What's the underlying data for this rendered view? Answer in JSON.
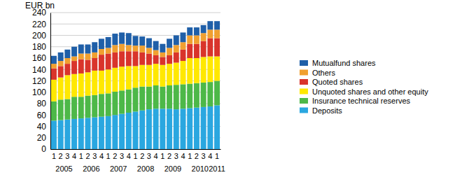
{
  "chart_data": {
    "type": "bar",
    "stacked": true,
    "grid": true,
    "legend": "right",
    "y_label": "EUR bn",
    "categories": [
      "1",
      "2",
      "3",
      "4",
      "1",
      "2",
      "3",
      "4",
      "1",
      "2",
      "3",
      "4",
      "1",
      "2",
      "3",
      "4",
      "1",
      "2",
      "3",
      "4",
      "1",
      "2",
      "3",
      "4",
      "1"
    ],
    "x_groups": [
      "2005",
      "2006",
      "2007",
      "2008",
      "2009",
      "2010",
      "2011"
    ],
    "ylim": [
      0,
      240
    ],
    "yticks": [
      0,
      20,
      40,
      60,
      80,
      100,
      120,
      140,
      160,
      180,
      200,
      220,
      240
    ],
    "series": [
      {
        "name": "Deposits",
        "color": "#2aa7e0",
        "values": [
          50,
          51,
          52,
          53,
          54,
          55,
          56,
          57,
          58,
          60,
          62,
          64,
          66,
          68,
          70,
          71,
          71,
          71,
          70,
          71,
          72,
          73,
          74,
          75,
          77
        ]
      },
      {
        "name": "Insurance technical reserves",
        "color": "#4db848",
        "values": [
          34,
          36,
          36,
          39,
          38,
          39,
          39,
          40,
          40,
          41,
          41,
          41,
          42,
          42,
          40,
          41,
          39,
          41,
          43,
          43,
          43,
          43,
          43,
          43,
          43
        ]
      },
      {
        "name": "Unquoted shares and other equity",
        "color": "#ffe800",
        "values": [
          38,
          39,
          42,
          40,
          41,
          41,
          43,
          41,
          42,
          42,
          42,
          41,
          38,
          38,
          38,
          38,
          38,
          38,
          39,
          41,
          45,
          44,
          45,
          45,
          43
        ]
      },
      {
        "name": "Quoted shares",
        "color": "#d9342b",
        "values": [
          20,
          20,
          20,
          23,
          25,
          22,
          22,
          28,
          28,
          27,
          27,
          26,
          26,
          22,
          20,
          15,
          14,
          15,
          18,
          20,
          25,
          25,
          28,
          32,
          32
        ]
      },
      {
        "name": "Others",
        "color": "#f0a030",
        "values": [
          8,
          9,
          10,
          8,
          10,
          11,
          10,
          10,
          10,
          13,
          13,
          11,
          10,
          12,
          10,
          9,
          8,
          13,
          13,
          13,
          15,
          15,
          14,
          15,
          15
        ]
      },
      {
        "name": "Mutualfund shares",
        "color": "#1f5fa8",
        "values": [
          14,
          15,
          15,
          17,
          16,
          16,
          18,
          18,
          19,
          20,
          20,
          21,
          17,
          16,
          17,
          16,
          15,
          16,
          17,
          17,
          14,
          14,
          14,
          15,
          15
        ]
      }
    ]
  }
}
